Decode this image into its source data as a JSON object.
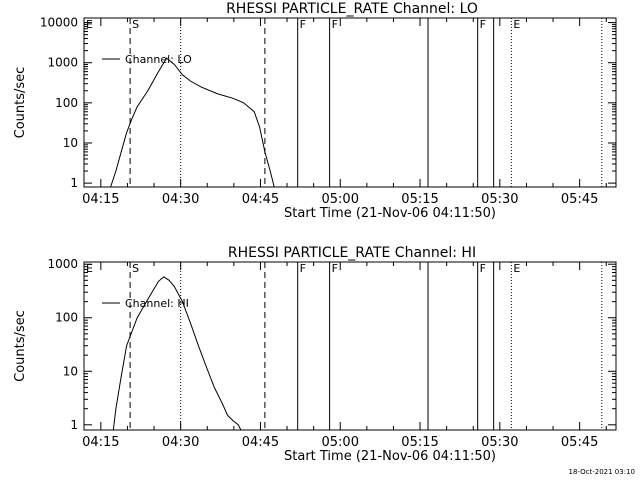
{
  "chart_data": [
    {
      "type": "line",
      "title": "RHESSI PARTICLE_RATE Channel: LO",
      "xlabel": "Start Time (21-Nov-06 04:11:50)",
      "ylabel": "Counts/sec",
      "yscale": "log",
      "ylim": [
        0.8,
        13000
      ],
      "xlim": [
        "04:11:50",
        "05:51:50"
      ],
      "x_ticks": [
        "04:15",
        "04:30",
        "04:45",
        "05:00",
        "05:15",
        "05:30",
        "05:45"
      ],
      "y_ticks": [
        "1",
        "10",
        "100",
        "1000",
        "10000"
      ],
      "legend": "Channel: LO",
      "markers": [
        {
          "label": "E",
          "time": "04:11:50",
          "style": "none"
        },
        {
          "label": "S",
          "time": "04:20:30",
          "style": "dashed"
        },
        {
          "label": "",
          "time": "04:30:00",
          "style": "dotted"
        },
        {
          "label": "",
          "time": "04:45:50",
          "style": "dashed"
        },
        {
          "label": "F",
          "time": "04:52:00",
          "style": "solid"
        },
        {
          "label": "F",
          "time": "04:58:00",
          "style": "solid"
        },
        {
          "label": "",
          "time": "05:16:30",
          "style": "solid"
        },
        {
          "label": "F",
          "time": "05:25:50",
          "style": "solid"
        },
        {
          "label": "",
          "time": "05:28:50",
          "style": "solid"
        },
        {
          "label": "E",
          "time": "05:32:10",
          "style": "dotted"
        },
        {
          "label": "",
          "time": "05:49:10",
          "style": "dotted"
        }
      ],
      "series": [
        {
          "time": [
            "04:16:50",
            "04:17:50",
            "04:18:50",
            "04:19:50",
            "04:20:50",
            "04:21:50",
            "04:23:50",
            "04:25:50",
            "04:26:50",
            "04:27:20",
            "04:28:50",
            "04:30:20",
            "04:31:50",
            "04:33:50",
            "04:36:50",
            "04:39:50",
            "04:41:50",
            "04:43:50",
            "04:44:50",
            "04:45:50",
            "04:46:50",
            "04:47:35"
          ],
          "values": [
            0.8,
            2,
            6,
            18,
            40,
            80,
            200,
            600,
            1000,
            1300,
            900,
            500,
            350,
            250,
            170,
            130,
            100,
            60,
            25,
            6,
            2,
            0.8
          ]
        }
      ]
    },
    {
      "type": "line",
      "title": "RHESSI PARTICLE_RATE Channel: HI",
      "xlabel": "Start Time (21-Nov-06 04:11:50)",
      "ylabel": "Counts/sec",
      "yscale": "log",
      "ylim": [
        0.8,
        1100
      ],
      "xlim": [
        "04:11:50",
        "05:51:50"
      ],
      "x_ticks": [
        "04:15",
        "04:30",
        "04:45",
        "05:00",
        "05:15",
        "05:30",
        "05:45"
      ],
      "y_ticks": [
        "1",
        "10",
        "100",
        "1000"
      ],
      "legend": "Channel: HI",
      "markers": [
        {
          "label": "E",
          "time": "04:11:50",
          "style": "none"
        },
        {
          "label": "S",
          "time": "04:20:30",
          "style": "dashed"
        },
        {
          "label": "",
          "time": "04:30:00",
          "style": "dotted"
        },
        {
          "label": "",
          "time": "04:45:50",
          "style": "dashed"
        },
        {
          "label": "F",
          "time": "04:52:00",
          "style": "solid"
        },
        {
          "label": "F",
          "time": "04:58:00",
          "style": "solid"
        },
        {
          "label": "",
          "time": "05:16:30",
          "style": "solid"
        },
        {
          "label": "F",
          "time": "05:25:50",
          "style": "solid"
        },
        {
          "label": "",
          "time": "05:28:50",
          "style": "solid"
        },
        {
          "label": "E",
          "time": "05:32:10",
          "style": "dotted"
        },
        {
          "label": "",
          "time": "05:49:10",
          "style": "dotted"
        }
      ],
      "series": [
        {
          "time": [
            "04:17:20",
            "04:17:50",
            "04:18:50",
            "04:19:50",
            "04:21:50",
            "04:23:50",
            "04:25:50",
            "04:26:50",
            "04:27:50",
            "04:28:50",
            "04:30:20",
            "04:31:50",
            "04:33:20",
            "04:34:50",
            "04:36:20",
            "04:37:50",
            "04:38:50",
            "04:39:50",
            "04:40:50",
            "04:41:20"
          ],
          "values": [
            0.8,
            2,
            8,
            30,
            100,
            220,
            480,
            580,
            500,
            380,
            200,
            80,
            30,
            12,
            5,
            2.5,
            1.5,
            1.2,
            1,
            0.8
          ]
        }
      ]
    }
  ],
  "footer_timestamp": "18-Oct-2021 03:10"
}
